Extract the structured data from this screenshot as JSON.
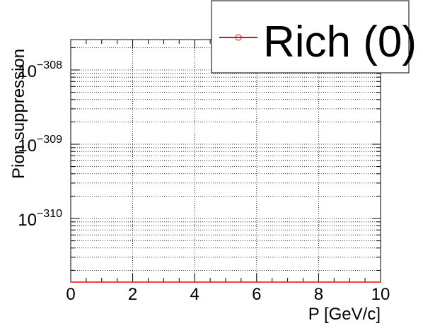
{
  "chart_data": {
    "type": "line",
    "title": "",
    "xlabel": "P [GeV/c]",
    "ylabel": "Pion suppression",
    "xlim": [
      0,
      10
    ],
    "y_scale": "log",
    "y_decades_shown": [
      -308,
      -309,
      -310
    ],
    "y_tick_base": "10",
    "x_ticks": [
      "0",
      "2",
      "4",
      "6",
      "8",
      "10"
    ],
    "grid": true,
    "legend_position": "top-right",
    "series": [
      {
        "name": "Rich (0)",
        "color": "#ff0000",
        "marker": "open-circle",
        "values": []
      }
    ]
  }
}
